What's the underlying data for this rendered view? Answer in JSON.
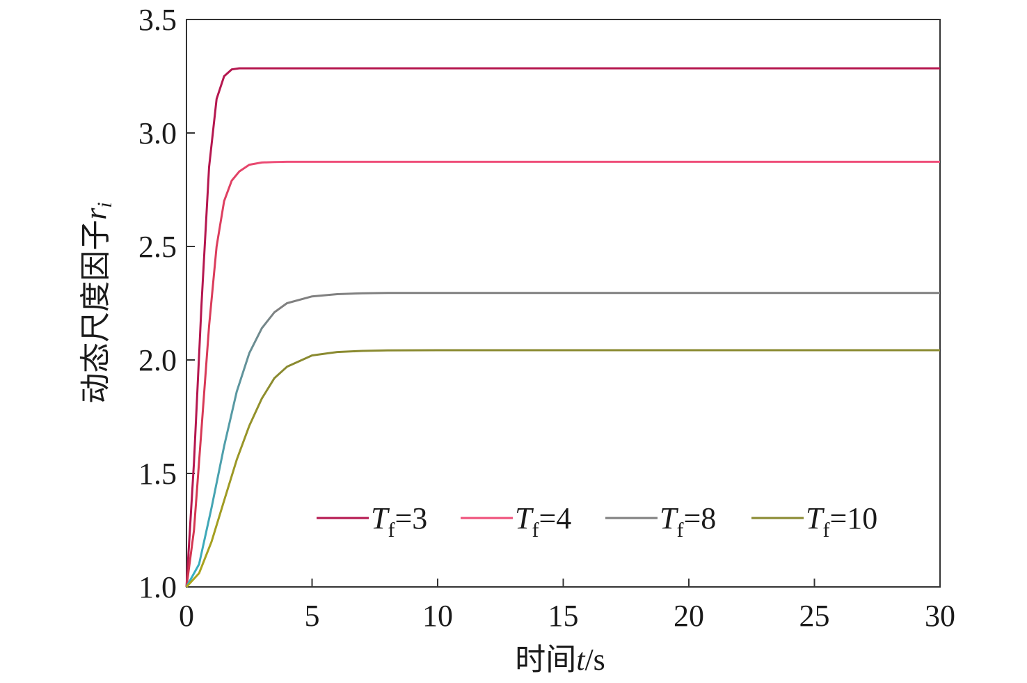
{
  "chart_data": {
    "type": "line",
    "xlabel": {
      "prefix": "时间",
      "var": "t",
      "suffix": "/s"
    },
    "ylabel": {
      "prefix": "动态尺度因子",
      "var": "r",
      "sub": "i"
    },
    "xlim": [
      0,
      30
    ],
    "ylim": [
      1.0,
      3.5
    ],
    "xticks": [
      "0",
      "5",
      "10",
      "15",
      "20",
      "25",
      "30"
    ],
    "yticks": [
      "1.0",
      "1.5",
      "2.0",
      "2.5",
      "3.0",
      "3.5"
    ],
    "grid": false,
    "legend_position": "bottom-right",
    "series": [
      {
        "name": "Tf=3",
        "legend_var": "T",
        "legend_sub": "f",
        "legend_val": "=3",
        "color": "#b5174f",
        "color_end": "#b5174f",
        "x": [
          0,
          0.3,
          0.6,
          0.9,
          1.2,
          1.5,
          1.8,
          2.1,
          2.5,
          3,
          4,
          30
        ],
        "y": [
          1.0,
          1.55,
          2.25,
          2.85,
          3.15,
          3.25,
          3.28,
          3.285,
          3.285,
          3.285,
          3.285,
          3.285
        ]
      },
      {
        "name": "Tf=4",
        "legend_var": "T",
        "legend_sub": "f",
        "legend_val": "=4",
        "color": "#d2344e",
        "color_end": "#ef4f7a",
        "x": [
          0,
          0.3,
          0.6,
          0.9,
          1.2,
          1.5,
          1.8,
          2.1,
          2.5,
          3,
          3.5,
          4,
          30
        ],
        "y": [
          1.0,
          1.25,
          1.7,
          2.15,
          2.5,
          2.7,
          2.79,
          2.83,
          2.86,
          2.87,
          2.872,
          2.873,
          2.873
        ]
      },
      {
        "name": "Tf=8",
        "legend_var": "T",
        "legend_sub": "f",
        "legend_val": "=8",
        "color": "#2db4c8",
        "color_end": "#808080",
        "x": [
          0,
          0.5,
          1,
          1.5,
          2,
          2.5,
          3,
          3.5,
          4,
          5,
          6,
          7,
          8,
          30
        ],
        "y": [
          1.0,
          1.1,
          1.35,
          1.62,
          1.86,
          2.03,
          2.14,
          2.21,
          2.25,
          2.28,
          2.29,
          2.294,
          2.295,
          2.295
        ]
      },
      {
        "name": "Tf=10",
        "legend_var": "T",
        "legend_sub": "f",
        "legend_val": "=10",
        "color": "#b0a81a",
        "color_end": "#8a8a30",
        "x": [
          0,
          0.5,
          1,
          1.5,
          2,
          2.5,
          3,
          3.5,
          4,
          5,
          6,
          7,
          8,
          10,
          30
        ],
        "y": [
          1.0,
          1.06,
          1.2,
          1.38,
          1.56,
          1.71,
          1.83,
          1.92,
          1.97,
          2.02,
          2.035,
          2.04,
          2.042,
          2.043,
          2.043
        ]
      }
    ]
  }
}
